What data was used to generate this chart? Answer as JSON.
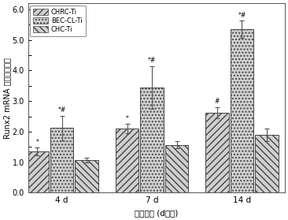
{
  "groups": [
    "4 d",
    "7 d",
    "14 d"
  ],
  "series": [
    "CHRC-Ti",
    "BEC-CL-Ti",
    "CHC-Ti"
  ],
  "values": [
    [
      1.35,
      2.12,
      1.07
    ],
    [
      2.1,
      3.45,
      1.57
    ],
    [
      2.62,
      5.35,
      1.89
    ]
  ],
  "errors": [
    [
      0.12,
      0.4,
      0.08
    ],
    [
      0.15,
      0.7,
      0.12
    ],
    [
      0.18,
      0.28,
      0.2
    ]
  ],
  "hatch_patterns": [
    "////",
    "....",
    "\\\\\\\\"
  ],
  "bar_color": "#d0d0d0",
  "bar_edge_color": "#444444",
  "ylabel": "Runx2 mRNA 的相对表达量",
  "xlabel": "培养时间 (d：天)",
  "ylim": [
    0.0,
    6.2
  ],
  "ytick_major": [
    0.0,
    1.0,
    2.0,
    3.0,
    4.0,
    5.0,
    6.0
  ],
  "legend_labels": [
    "CHRC-Ti",
    "BEC-CL-Ti",
    "CHC-Ti"
  ],
  "group_centers": [
    0.3,
    1.1,
    1.9
  ],
  "bar_width": 0.22,
  "offsets": [
    -0.22,
    0.0,
    0.22
  ]
}
